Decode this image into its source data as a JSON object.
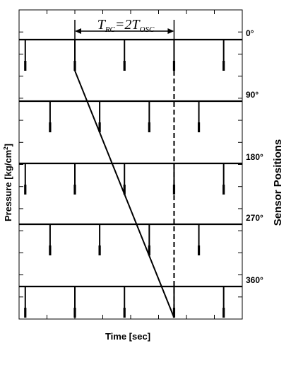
{
  "chart_data": {
    "type": "line",
    "xlabel": "Time [sec]",
    "ylabel": "Pressure [kg/cm²]",
    "ylabel_parts": {
      "main": "Pressure [kg/cm",
      "sup": "2",
      "end": "]"
    },
    "right_label": "Sensor Positions",
    "annotation": {
      "T": "T",
      "sub1": "RC",
      "mid": "=2T",
      "sub2": "OSC",
      "text": "TRC=2TOSC"
    },
    "sensors": [
      {
        "label": "0°",
        "base": "0",
        "pulse_times": [
          0.5,
          4.5,
          8.5,
          12.5,
          16.5
        ]
      },
      {
        "label": "90°",
        "base": "90",
        "pulse_times": [
          2.5,
          6.5,
          10.5,
          14.5
        ]
      },
      {
        "label": "180°",
        "base": "180",
        "pulse_times": [
          0.5,
          4.5,
          8.5,
          12.5,
          16.5
        ]
      },
      {
        "label": "270°",
        "base": "270",
        "pulse_times": [
          2.5,
          6.5,
          10.5,
          14.5
        ]
      },
      {
        "label": "360°",
        "base": "360",
        "pulse_times": [
          0.5,
          4.5,
          8.5,
          12.5,
          16.5
        ]
      }
    ],
    "propagation_line": {
      "x": [
        4.5,
        12.5
      ],
      "label": "TRC"
    },
    "oscillation_marker": {
      "x": 12.5
    },
    "xlim": [
      0,
      18
    ],
    "x_ticks": 8,
    "y_ticks": 14,
    "grid": false
  }
}
